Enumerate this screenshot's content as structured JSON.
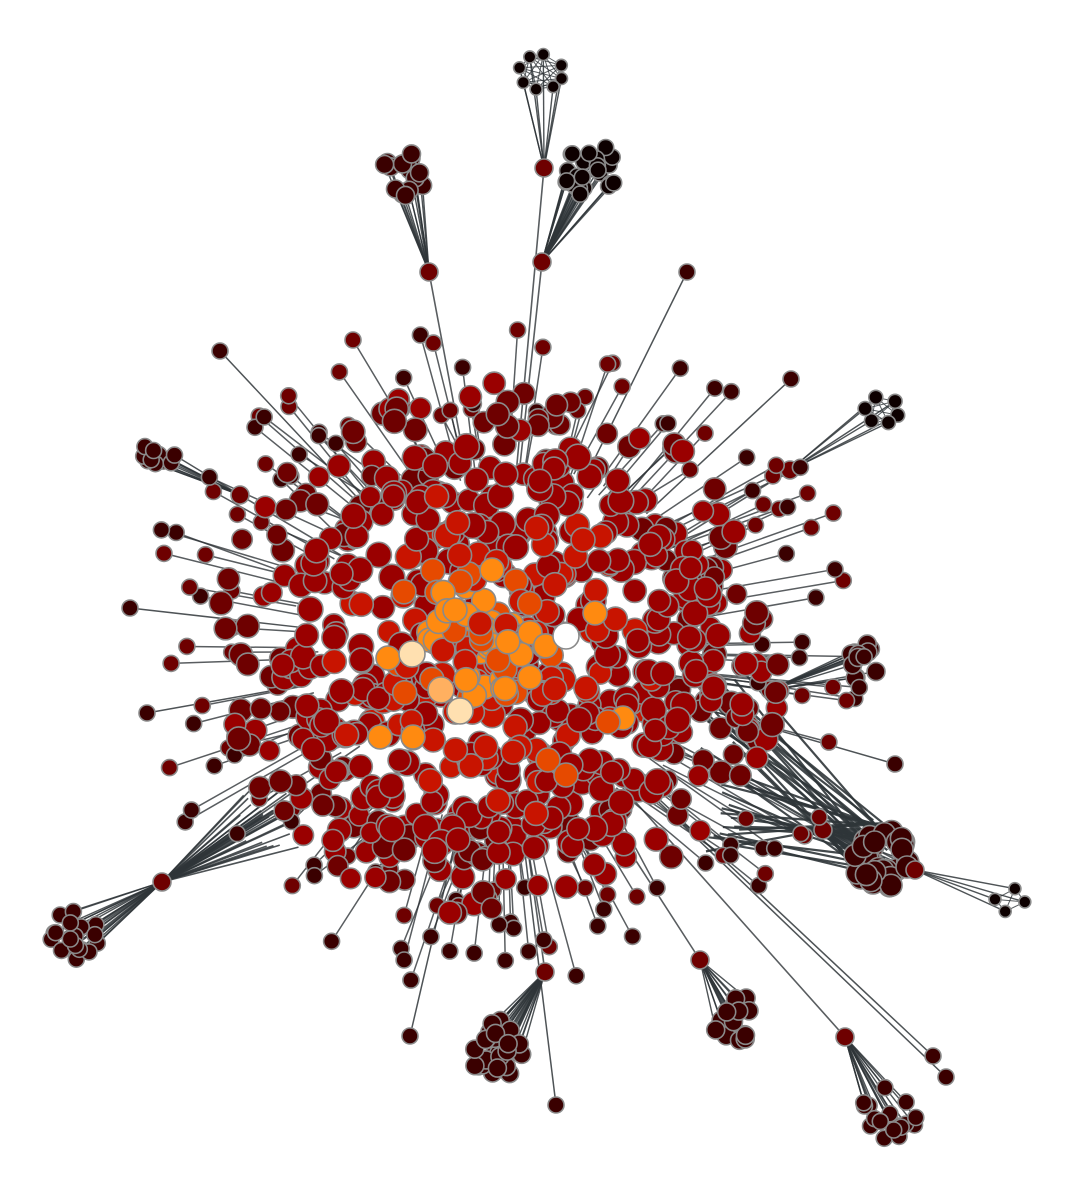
{
  "figure": {
    "type": "network-graph",
    "description_visible_text": "",
    "background": "#ffffff",
    "edge_color": "#2f3538",
    "node_stroke": "#8a8a8a",
    "color_scale": [
      "#0d0000",
      "#3a0000",
      "#6e0000",
      "#9a0000",
      "#c81400",
      "#e64a00",
      "#ff8a10",
      "#ffb060",
      "#ffe0b0",
      "#ffffff"
    ]
  },
  "network": {
    "central_hub_count": 1,
    "satellite_clusters": [
      {
        "name": "top-small",
        "color_level": 0,
        "members": 8
      },
      {
        "name": "top-right-dense",
        "color_level": 0,
        "members": 28
      },
      {
        "name": "top-left",
        "color_level": 1,
        "members": 14
      },
      {
        "name": "right-ring",
        "color_level": 0,
        "members": 6
      },
      {
        "name": "right-dense",
        "color_level": 1,
        "members": 34
      },
      {
        "name": "bottom-left",
        "color_level": 1,
        "members": 20
      },
      {
        "name": "bottom-center",
        "color_level": 1,
        "members": 26
      },
      {
        "name": "bottom-right",
        "color_level": 1,
        "members": 18
      },
      {
        "name": "bottom-right-small",
        "color_level": 0,
        "members": 4
      },
      {
        "name": "bottom-right-lower",
        "color_level": 1,
        "members": 16
      },
      {
        "name": "right-mid",
        "color_level": 1,
        "members": 12
      },
      {
        "name": "left-upper",
        "color_level": 1,
        "members": 10
      }
    ],
    "hot_nodes": [
      {
        "name": "hub-white",
        "color_level": 9
      },
      {
        "name": "hub-pale-1",
        "color_level": 8
      },
      {
        "name": "hub-pale-2",
        "color_level": 8
      },
      {
        "name": "hub-peach",
        "color_level": 7
      }
    ]
  }
}
